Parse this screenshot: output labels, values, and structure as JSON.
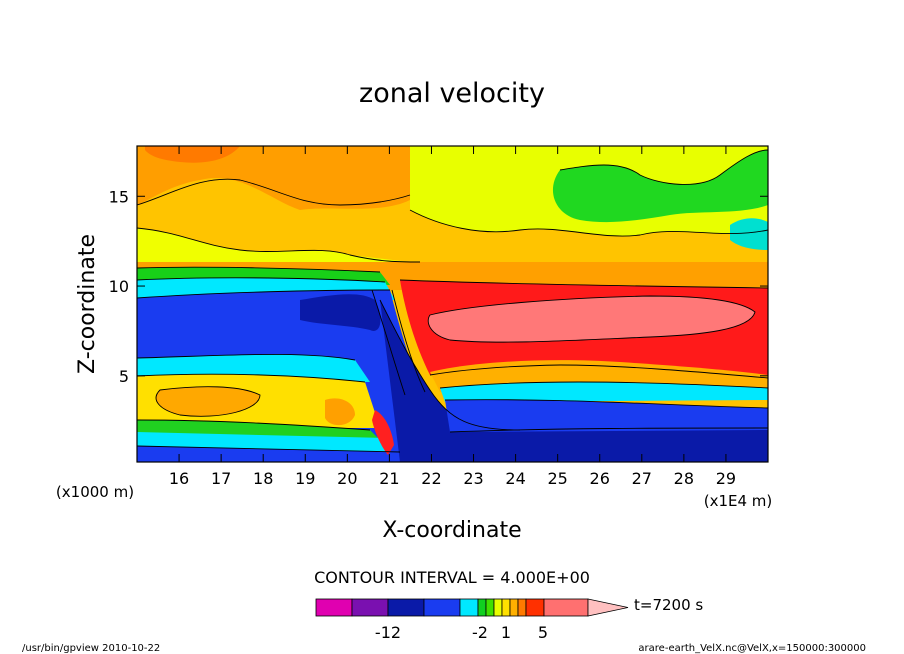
{
  "chart_data": {
    "type": "heatmap",
    "title": "zonal velocity",
    "xlabel": "X-coordinate",
    "ylabel": "Z-coordinate",
    "x_unit_note": "(x1E4 m)",
    "y_unit_note": "(x1000 m)",
    "xlim": [
      15.0,
      30.0
    ],
    "ylim": [
      0.2,
      17.8
    ],
    "x_ticks": [
      "16",
      "17",
      "18",
      "19",
      "20",
      "21",
      "22",
      "23",
      "24",
      "25",
      "26",
      "27",
      "28",
      "29"
    ],
    "y_ticks": [
      "5",
      "10",
      "15"
    ],
    "contour_interval_text": "CONTOUR INTERVAL = 4.000E+00",
    "colorbar": {
      "labels": [
        "-12",
        "-2",
        "1",
        "5"
      ],
      "time_label": "t=7200 s",
      "colors": [
        "#e000b0",
        "#7a10b0",
        "#0a1aa8",
        "#1a3cf0",
        "#00e8ff",
        "#10d020",
        "#40e000",
        "#e8ff00",
        "#ffe000",
        "#ffb000",
        "#ff7a00",
        "#ff3000",
        "#ff7070",
        "#ffc0c0"
      ]
    },
    "regions_note": "approximate contour bands of zonal velocity",
    "footer_left": "/usr/bin/gpview  2010-10-22",
    "footer_right": "arare-earth_VelX.nc@VelX,x=150000:300000"
  },
  "palette": {
    "orange_dark": "#ff8a00",
    "orange": "#ffb000",
    "yellow_orange": "#ffe000",
    "yellow": "#e8ff00",
    "green": "#30d030",
    "cyan": "#00e8ff",
    "blue": "#1a3cf0",
    "navy": "#0a1aa8",
    "red": "#ff1010",
    "pink": "#ff7a7a"
  }
}
